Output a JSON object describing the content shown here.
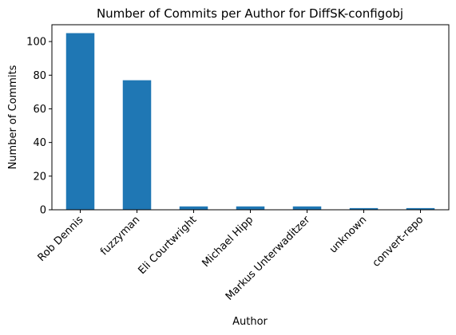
{
  "chart_data": {
    "type": "bar",
    "title": "Number of Commits per Author for DiffSK-configobj",
    "xlabel": "Author",
    "ylabel": "Number of Commits",
    "categories": [
      "Rob Dennis",
      "fuzzyman",
      "Eli Courtwright",
      "Michael Hipp",
      "Markus Unterwaditzer",
      "unknown",
      "convert-repo"
    ],
    "values": [
      105,
      77,
      2,
      2,
      2,
      1,
      1
    ],
    "ylim": [
      0,
      110
    ],
    "yticks": [
      0,
      20,
      40,
      60,
      80,
      100
    ],
    "grid": false,
    "legend": "none",
    "bar_color": "#1f77b4"
  }
}
